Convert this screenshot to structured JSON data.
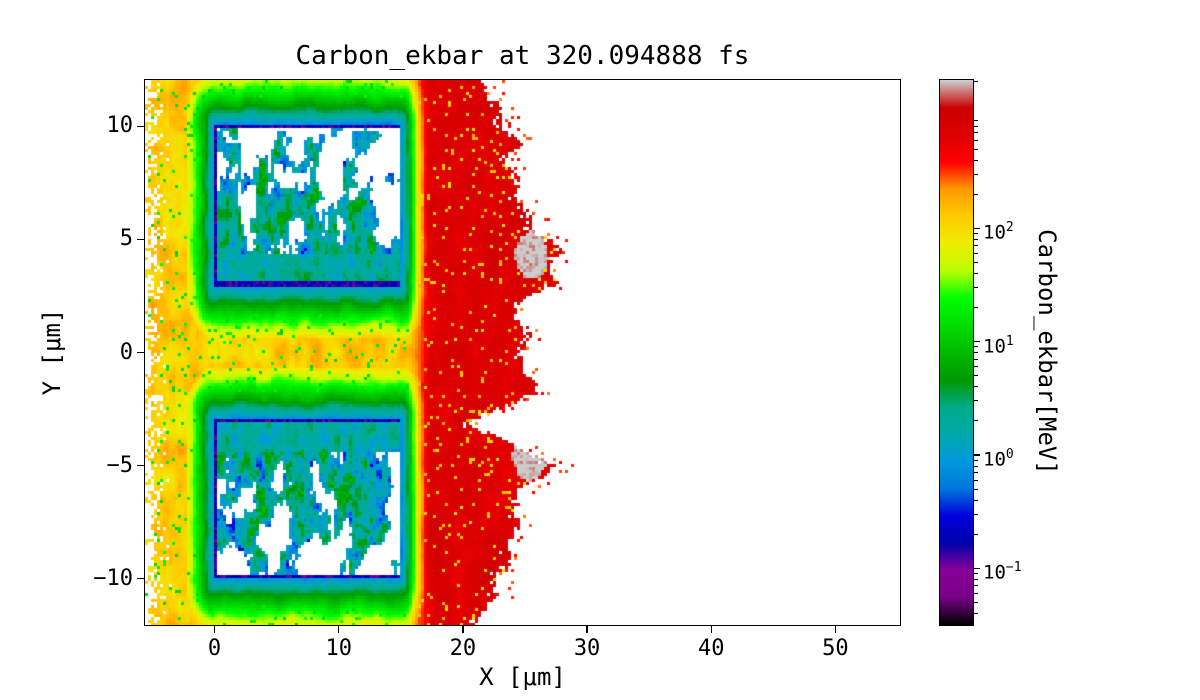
{
  "chart_data": {
    "type": "heatmap",
    "title": "Carbon_ekbar at 320.094888 fs",
    "xlabel": "X [μm]",
    "ylabel": "Y [μm]",
    "xlim": [
      -5.6,
      55.2
    ],
    "ylim": [
      -12.05,
      12.05
    ],
    "x_ticks": [
      0,
      10,
      20,
      30,
      40,
      50
    ],
    "y_ticks": [
      -10,
      -5,
      0,
      5,
      10
    ],
    "grid": false,
    "legend": "none",
    "background": "#ffffff",
    "colorbar": {
      "label": "Carbon_ekbar[MeV]",
      "scale": "log",
      "unit": "MeV",
      "tick_exponents": [
        2,
        1,
        0,
        -1
      ],
      "log10_min": -1.5,
      "log10_max": 3.31,
      "colormap": "nipy_spectral",
      "colormap_stops": [
        [
          0.0,
          0,
          0,
          0
        ],
        [
          0.05,
          0.4667,
          0,
          0.5333
        ],
        [
          0.1,
          0.5333,
          0,
          0.6
        ],
        [
          0.15,
          0,
          0,
          0.6667
        ],
        [
          0.2,
          0,
          0,
          0.8667
        ],
        [
          0.25,
          0,
          0.4667,
          0.8667
        ],
        [
          0.3,
          0,
          0.6,
          0.8667
        ],
        [
          0.35,
          0,
          0.6667,
          0.6667
        ],
        [
          0.4,
          0,
          0.6667,
          0.5333
        ],
        [
          0.45,
          0,
          0.6,
          0
        ],
        [
          0.5,
          0,
          0.7333,
          0
        ],
        [
          0.55,
          0,
          0.8667,
          0
        ],
        [
          0.6,
          0,
          1,
          0
        ],
        [
          0.65,
          0.7333,
          1,
          0
        ],
        [
          0.7,
          0.9333,
          0.9333,
          0
        ],
        [
          0.75,
          1,
          0.8,
          0
        ],
        [
          0.8,
          1,
          0.6,
          0
        ],
        [
          0.85,
          1,
          0,
          0
        ],
        [
          0.9,
          0.8667,
          0,
          0
        ],
        [
          0.95,
          0.8,
          0,
          0
        ],
        [
          1.0,
          0.8,
          0.8,
          0.8
        ]
      ]
    },
    "scene": {
      "description": "Two rectangular target blocks of low-energy (blue/cyan) carbon ions with dark-blue borders, surrounded by green-to-yellow halo plasma, orange ambient plasma on the left, and a high-energy red plume expanding to the right with two gray hot spots; white = no particles",
      "target_blocks": [
        {
          "x0": 0,
          "x1": 15,
          "y0": 2.95,
          "y1": 10.1,
          "facing": "down"
        },
        {
          "x0": 0,
          "x1": 15,
          "y0": -10.0,
          "y1": -2.95,
          "facing": "up"
        }
      ],
      "block_border": {
        "thickness_um": 0.18,
        "energy_mev": 0.15
      },
      "block_interior_log10_range": [
        -0.5,
        1.2
      ],
      "halo": {
        "width_um": 2.3,
        "log10_start": -0.15,
        "log10_end": 2.0
      },
      "ambient_log10": 2.1,
      "plume": {
        "x_start_um": 15.6,
        "ramp_um": 1.8,
        "log10": 2.66,
        "log10_jitter": 0.4
      },
      "hot_spots": [
        {
          "x": 25.5,
          "y": 4.3,
          "rx": 1.5,
          "ry": 1.1,
          "log10": 3.25
        },
        {
          "x": 25.4,
          "y": -4.6,
          "rx": 1.5,
          "ry": 1.1,
          "log10": 3.25
        }
      ],
      "right_boundary_um": [
        [
          -12,
          21.5
        ],
        [
          -10,
          23.5
        ],
        [
          -8,
          24.2
        ],
        [
          -6,
          25.6
        ],
        [
          -5,
          27.6
        ],
        [
          -4.3,
          25.3
        ],
        [
          -3.2,
          21.3
        ],
        [
          -2.4,
          23.6
        ],
        [
          -1.8,
          25.4
        ],
        [
          -1,
          25.3
        ],
        [
          0,
          24.8
        ],
        [
          1,
          25.4
        ],
        [
          2,
          24.8
        ],
        [
          2.8,
          26.4
        ],
        [
          4,
          27.7
        ],
        [
          5,
          27
        ],
        [
          6,
          25.4
        ],
        [
          7,
          24.6
        ],
        [
          8,
          24.2
        ],
        [
          10,
          23.6
        ],
        [
          12,
          21.8
        ]
      ],
      "left_edge_um": -5.6
    }
  }
}
